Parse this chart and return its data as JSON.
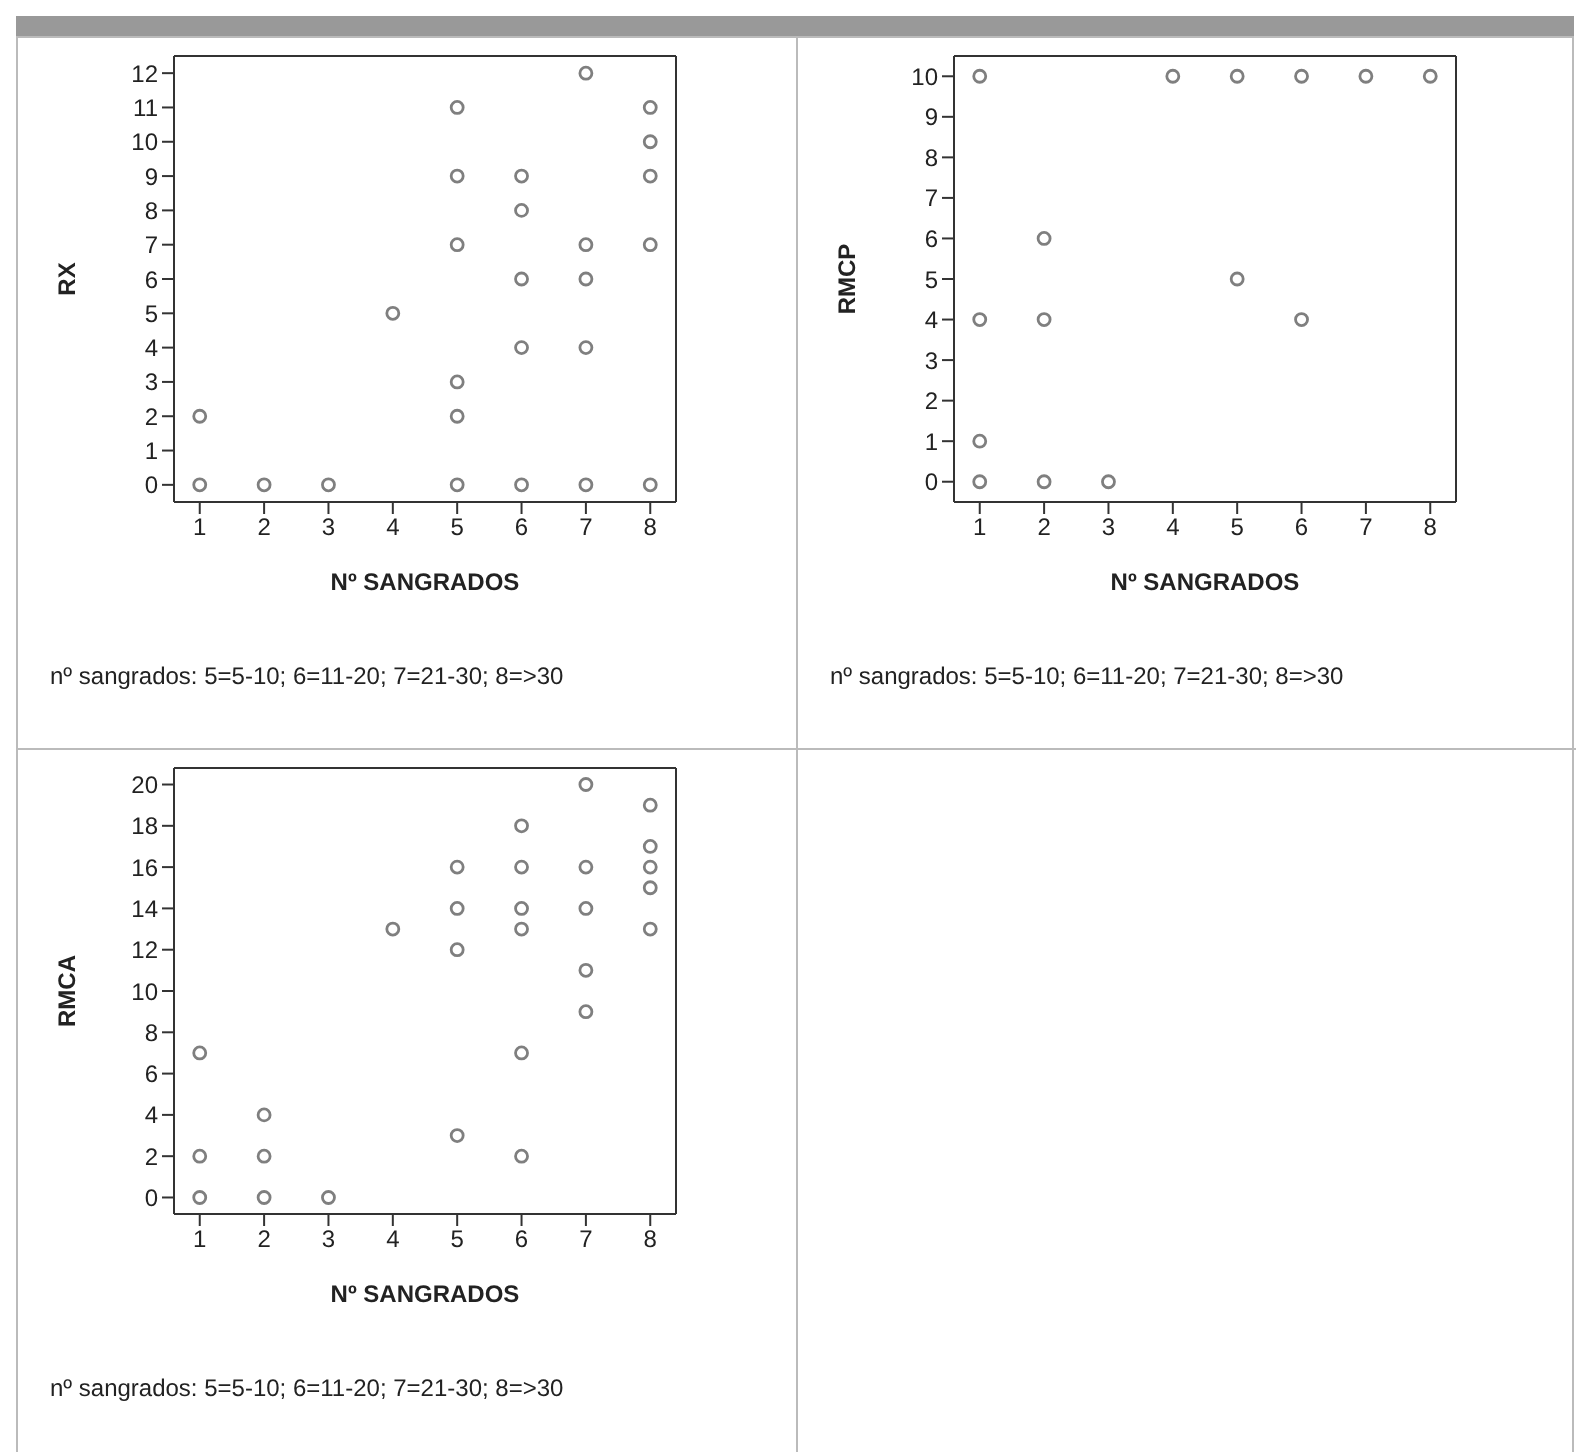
{
  "chart_data": [
    {
      "type": "scatter",
      "xlabel": "Nº SANGRADOS",
      "ylabel": "RX",
      "x": [
        1,
        1,
        2,
        3,
        4,
        5,
        5,
        5,
        5,
        5,
        5,
        6,
        6,
        6,
        6,
        6,
        7,
        7,
        7,
        7,
        7,
        8,
        8,
        8,
        8,
        8
      ],
      "values": [
        0,
        2,
        0,
        0,
        5,
        11,
        9,
        7,
        3,
        2,
        0,
        9,
        8,
        6,
        4,
        0,
        12,
        7,
        6,
        4,
        0,
        11,
        10,
        9,
        7,
        0
      ],
      "color": "#7f7f7f",
      "marker": "circle",
      "grid": false,
      "xlim": [
        0.6,
        8.4
      ],
      "xticks": [
        1,
        2,
        3,
        4,
        5,
        6,
        7,
        8
      ],
      "ylim": [
        -0.5,
        12.5
      ],
      "yticks": [
        0,
        1,
        2,
        3,
        4,
        5,
        6,
        7,
        8,
        9,
        10,
        11,
        12
      ],
      "annotations": [
        "nº sangrados: 5=5-10; 6=11-20; 7=21-30; 8=>30"
      ]
    },
    {
      "type": "scatter",
      "xlabel": "Nº SANGRADOS",
      "ylabel": "RMCP",
      "x": [
        1,
        1,
        1,
        1,
        2,
        2,
        2,
        3,
        4,
        5,
        5,
        6,
        6,
        7,
        8
      ],
      "values": [
        10,
        4,
        1,
        0,
        6,
        4,
        0,
        0,
        10,
        10,
        5,
        10,
        4,
        10,
        10
      ],
      "color": "#7f7f7f",
      "marker": "circle",
      "grid": false,
      "xlim": [
        0.6,
        8.4
      ],
      "xticks": [
        1,
        2,
        3,
        4,
        5,
        6,
        7,
        8
      ],
      "ylim": [
        -0.5,
        10.5
      ],
      "yticks": [
        0,
        1,
        2,
        3,
        4,
        5,
        6,
        7,
        8,
        9,
        10
      ],
      "annotations": [
        "nº sangrados: 5=5-10; 6=11-20; 7=21-30; 8=>30"
      ]
    },
    {
      "type": "scatter",
      "xlabel": "Nº SANGRADOS",
      "ylabel": "RMCA",
      "x": [
        1,
        1,
        1,
        2,
        2,
        2,
        3,
        4,
        5,
        5,
        5,
        5,
        6,
        6,
        6,
        6,
        6,
        6,
        7,
        7,
        7,
        7,
        7,
        8,
        8,
        8,
        8,
        8
      ],
      "values": [
        7,
        2,
        0,
        4,
        2,
        0,
        0,
        13,
        16,
        14,
        12,
        3,
        18,
        16,
        14,
        13,
        7,
        2,
        20,
        16,
        14,
        11,
        9,
        19,
        17,
        16,
        15,
        13
      ],
      "color": "#7f7f7f",
      "marker": "circle",
      "grid": false,
      "xlim": [
        0.6,
        8.4
      ],
      "xticks": [
        1,
        2,
        3,
        4,
        5,
        6,
        7,
        8
      ],
      "ylim": [
        -0.8,
        20.8
      ],
      "yticks": [
        0,
        2,
        4,
        6,
        8,
        10,
        12,
        14,
        16,
        18,
        20
      ],
      "annotations": [
        "nº sangrados: 5=5-10; 6=11-20; 7=21-30; 8=>30"
      ]
    }
  ]
}
